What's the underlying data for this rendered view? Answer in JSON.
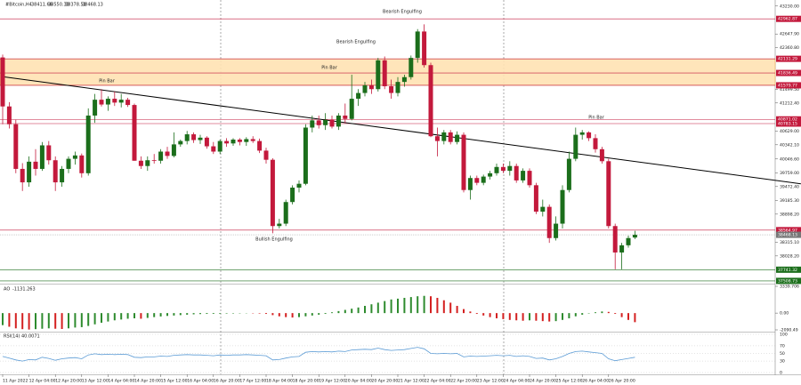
{
  "chart_data": [
    {
      "type": "candlestick",
      "title": "#Bitcoin,H4",
      "up_color": "#1b6e1b",
      "down_color": "#c3193c",
      "ylim": [
        37470,
        43300
      ],
      "yticks": [
        {
          "value": 43230,
          "label": "43230.00"
        },
        {
          "value": 42647.9,
          "label": "42647.90"
        },
        {
          "value": 42360.8,
          "label": "42360.80"
        },
        {
          "value": 41499.5,
          "label": "41499.50"
        },
        {
          "value": 41212.4,
          "label": "41212.40"
        },
        {
          "value": 40629,
          "label": "40629.00"
        },
        {
          "value": 40342.1,
          "label": "40342.10"
        },
        {
          "value": 40046.6,
          "label": "40046.60"
        },
        {
          "value": 39759,
          "label": "39759.00"
        },
        {
          "value": 39472.4,
          "label": "39472.40"
        },
        {
          "value": 39185.3,
          "label": "39185.30"
        },
        {
          "value": 38898.2,
          "label": "38898.20"
        },
        {
          "value": 38315.1,
          "label": "38315.10"
        },
        {
          "value": 38028.2,
          "label": "38028.20"
        }
      ],
      "categories": [
        "11 Apr 2022",
        null,
        null,
        null,
        "12 Apr 04:00",
        null,
        null,
        null,
        "12 Apr 20:00",
        null,
        null,
        null,
        "13 Apr 12:00",
        null,
        null,
        null,
        "14 Apr 04:00",
        null,
        null,
        null,
        "14 Apr 20:00",
        null,
        null,
        null,
        "15 Apr 12:00",
        null,
        null,
        null,
        "16 Apr 04:00",
        null,
        null,
        null,
        "16 Apr 20:00",
        null,
        null,
        null,
        "17 Apr 12:00",
        null,
        null,
        null,
        "18 Apr 04:00",
        null,
        null,
        null,
        "18 Apr 20:00",
        null,
        null,
        null,
        "19 Apr 12:00",
        null,
        null,
        null,
        "20 Apr 04:00",
        null,
        null,
        null,
        "20 Apr 20:00",
        null,
        null,
        null,
        "21 Apr 12:00",
        null,
        null,
        null,
        "22 Apr 04:00",
        null,
        null,
        null,
        "22 Apr 20:00",
        null,
        null,
        null,
        "23 Apr 12:00",
        null,
        null,
        null,
        "24 Apr 04:00",
        null,
        null,
        null,
        "24 Apr 20:00",
        null,
        null,
        null,
        "25 Apr 12:00",
        null,
        null,
        null,
        "26 Apr 04:00",
        null,
        null,
        null,
        "26 Apr 20:00",
        null,
        null,
        null,
        null
      ],
      "candles": [
        [
          42160,
          42220,
          40770,
          41140
        ],
        [
          41140,
          41230,
          40680,
          40770
        ],
        [
          40770,
          40860,
          39750,
          39840
        ],
        [
          39840,
          39960,
          39380,
          39560
        ],
        [
          39560,
          40100,
          39470,
          39990
        ],
        [
          39990,
          40250,
          39700,
          39840
        ],
        [
          39840,
          40400,
          39800,
          40330
        ],
        [
          40330,
          40420,
          39930,
          40020
        ],
        [
          40020,
          40100,
          39380,
          39560
        ],
        [
          39560,
          39900,
          39470,
          39840
        ],
        [
          39840,
          40100,
          39750,
          40050
        ],
        [
          40050,
          40200,
          39930,
          40120
        ],
        [
          40120,
          40160,
          39660,
          39750
        ],
        [
          39750,
          41100,
          39700,
          40950
        ],
        [
          40950,
          41400,
          40800,
          41280
        ],
        [
          41280,
          41500,
          41140,
          41180
        ],
        [
          41180,
          41350,
          41050,
          41300
        ],
        [
          41300,
          41450,
          41150,
          41220
        ],
        [
          41220,
          41400,
          41120,
          41280
        ],
        [
          41280,
          41320,
          41130,
          41170
        ],
        [
          41170,
          41200,
          40010,
          40010
        ],
        [
          40010,
          40100,
          39840,
          39900
        ],
        [
          39900,
          40100,
          39800,
          40020
        ],
        [
          40020,
          40150,
          39950,
          40010
        ],
        [
          40010,
          40250,
          39950,
          40200
        ],
        [
          40200,
          40300,
          40050,
          40110
        ],
        [
          40110,
          40600,
          40080,
          40350
        ],
        [
          40350,
          40450,
          40300,
          40420
        ],
        [
          40420,
          40630,
          40350,
          40560
        ],
        [
          40560,
          40600,
          40380,
          40440
        ],
        [
          40440,
          40550,
          40360,
          40490
        ],
        [
          40490,
          40520,
          40260,
          40310
        ],
        [
          40310,
          40400,
          40150,
          40200
        ],
        [
          40200,
          40450,
          40150,
          40420
        ],
        [
          40420,
          40480,
          40300,
          40370
        ],
        [
          40370,
          40480,
          40320,
          40450
        ],
        [
          40450,
          40480,
          40330,
          40400
        ],
        [
          40400,
          40500,
          40320,
          40460
        ],
        [
          40460,
          40520,
          40380,
          40420
        ],
        [
          40420,
          40470,
          40170,
          40220
        ],
        [
          40220,
          40280,
          39950,
          40030
        ],
        [
          40030,
          40060,
          38500,
          38650
        ],
        [
          38650,
          38800,
          38600,
          38700
        ],
        [
          38700,
          39200,
          38650,
          39150
        ],
        [
          39150,
          39500,
          39100,
          39450
        ],
        [
          39450,
          39600,
          39350,
          39530
        ],
        [
          39530,
          40770,
          39500,
          40700
        ],
        [
          40700,
          40950,
          40600,
          40850
        ],
        [
          40850,
          40950,
          40680,
          40750
        ],
        [
          40750,
          41000,
          40650,
          40860
        ],
        [
          40860,
          40950,
          40680,
          40720
        ],
        [
          40720,
          41000,
          40650,
          40950
        ],
        [
          40950,
          41200,
          40800,
          40880
        ],
        [
          40880,
          41800,
          40850,
          41300
        ],
        [
          41300,
          41500,
          41150,
          41420
        ],
        [
          41420,
          41650,
          41350,
          41580
        ],
        [
          41580,
          41700,
          41400,
          41500
        ],
        [
          41500,
          42150,
          41450,
          42100
        ],
        [
          42100,
          42180,
          41500,
          41560
        ],
        [
          41560,
          41700,
          41300,
          41420
        ],
        [
          41420,
          41750,
          41350,
          41650
        ],
        [
          41650,
          41800,
          41550,
          41750
        ],
        [
          41750,
          42200,
          41700,
          42150
        ],
        [
          42150,
          42750,
          42050,
          42700
        ],
        [
          42700,
          42850,
          41950,
          42000
        ],
        [
          42000,
          42050,
          40500,
          40520
        ],
        [
          40520,
          40700,
          40100,
          40420
        ],
        [
          40420,
          40650,
          40350,
          40600
        ],
        [
          40600,
          40650,
          40350,
          40400
        ],
        [
          40400,
          40620,
          40350,
          40550
        ],
        [
          40550,
          40600,
          39350,
          39400
        ],
        [
          39400,
          39700,
          39200,
          39650
        ],
        [
          39650,
          39700,
          39500,
          39550
        ],
        [
          39550,
          39720,
          39500,
          39680
        ],
        [
          39680,
          39800,
          39620,
          39750
        ],
        [
          39750,
          39950,
          39700,
          39880
        ],
        [
          39880,
          39950,
          39750,
          39800
        ],
        [
          39800,
          40000,
          39700,
          39900
        ],
        [
          39900,
          39950,
          39550,
          39600
        ],
        [
          39600,
          39850,
          39550,
          39800
        ],
        [
          39800,
          39850,
          39450,
          39500
        ],
        [
          39500,
          39550,
          38900,
          38950
        ],
        [
          38950,
          39200,
          38850,
          39050
        ],
        [
          39050,
          39100,
          38300,
          38400
        ],
        [
          38400,
          38850,
          38350,
          38700
        ],
        [
          38700,
          39500,
          38600,
          39400
        ],
        [
          39400,
          40200,
          39350,
          40050
        ],
        [
          40050,
          40700,
          40000,
          40550
        ],
        [
          40550,
          40650,
          40450,
          40600
        ],
        [
          40600,
          40620,
          40420,
          40480
        ],
        [
          40480,
          40560,
          40180,
          40250
        ],
        [
          40250,
          40300,
          39950,
          40000
        ],
        [
          40000,
          40050,
          38600,
          38650
        ],
        [
          38650,
          38700,
          37750,
          38100
        ],
        [
          38100,
          38300,
          37750,
          38250
        ],
        [
          38250,
          38450,
          38200,
          38400
        ],
        [
          38411.66,
          38550.33,
          38378.51,
          38468.13
        ]
      ],
      "levels": [
        {
          "value": 42962.87,
          "color": "#c3193c"
        },
        {
          "value": 42131.29,
          "color": "#c3193c"
        },
        {
          "value": 41836.49,
          "color": "#c3193c"
        },
        {
          "value": 41579.77,
          "color": "#c3193c"
        },
        {
          "value": 40871.02,
          "color": "#c3193c"
        },
        {
          "value": 40783.15,
          "color": "#c3193c"
        },
        {
          "value": 38564.97,
          "color": "#c3193c"
        },
        {
          "value": 37741.32,
          "color": "#1b6e1b"
        },
        {
          "value": 37508.73,
          "color": "#1b6e1b"
        }
      ],
      "zones": [
        {
          "top": 42131.29,
          "bottom": 41579.77,
          "color": "#ffe2b3"
        }
      ],
      "trendline": {
        "from": [
          0,
          41760
        ],
        "to": [
          121.2,
          39530
        ],
        "color": "#000000"
      },
      "annotations": [
        "Bearish Engulfing",
        "Bearish Engulfing",
        "Pin Bar",
        "Pin Bar",
        "Pin Bar",
        "Bullish Engulfing"
      ]
    },
    {
      "type": "bar",
      "title": "AO",
      "up_color": "#2e8b2e",
      "down_color": "#d42020",
      "ylim": [
        -2090.49,
        3339.706
      ],
      "yticks": [
        3339.706,
        {
          "value": 0,
          "label": "0.00"
        },
        -2090.49
      ],
      "values": [
        -1500,
        -1700,
        -1900,
        -2000,
        -2050,
        -2000,
        -1950,
        -1900,
        -1950,
        -1980,
        -1900,
        -1800,
        -1750,
        -1600,
        -1400,
        -1200,
        -1050,
        -900,
        -800,
        -700,
        -650,
        -700,
        -600,
        -500,
        -420,
        -350,
        -300,
        -250,
        -200,
        -150,
        -120,
        -100,
        -90,
        -80,
        -60,
        -50,
        -40,
        -30,
        -40,
        -60,
        -100,
        -250,
        -400,
        -500,
        -550,
        -500,
        -400,
        -300,
        -200,
        -100,
        100,
        250,
        400,
        550,
        700,
        900,
        1100,
        1300,
        1500,
        1700,
        1800,
        1900,
        2000,
        2100,
        2150,
        2100,
        1900,
        1600,
        1300,
        900,
        500,
        200,
        -100,
        -300,
        -500,
        -650,
        -750,
        -850,
        -900,
        -950,
        -900,
        -950,
        -1000,
        -1050,
        -1000,
        -850,
        -650,
        -400,
        -200,
        -50,
        100,
        200,
        150,
        -100,
        -500,
        -850,
        -1131.263
      ]
    },
    {
      "type": "line",
      "title": "RSI(14)",
      "color": "#5b9bd5",
      "ylim": [
        0,
        100
      ],
      "yticks": [
        0,
        30,
        50,
        70,
        100
      ],
      "values": [
        42,
        38,
        33,
        30,
        34,
        33,
        40,
        37,
        32,
        36,
        38,
        39,
        36,
        46,
        49,
        47,
        48,
        47,
        48,
        47,
        40,
        39,
        41,
        41,
        43,
        42,
        45,
        46,
        47,
        46,
        46,
        45,
        44,
        46,
        45,
        46,
        46,
        47,
        46,
        45,
        44,
        33,
        34,
        38,
        41,
        42,
        53,
        55,
        54,
        55,
        54,
        56,
        55,
        59,
        60,
        61,
        60,
        64,
        60,
        58,
        59,
        60,
        63,
        66,
        62,
        50,
        49,
        50,
        49,
        50,
        41,
        43,
        42,
        43,
        44,
        45,
        44,
        45,
        42,
        44,
        42,
        37,
        38,
        33,
        36,
        42,
        50,
        55,
        56,
        54,
        52,
        50,
        36,
        31,
        34,
        37,
        40.0071
      ]
    }
  ]
}
